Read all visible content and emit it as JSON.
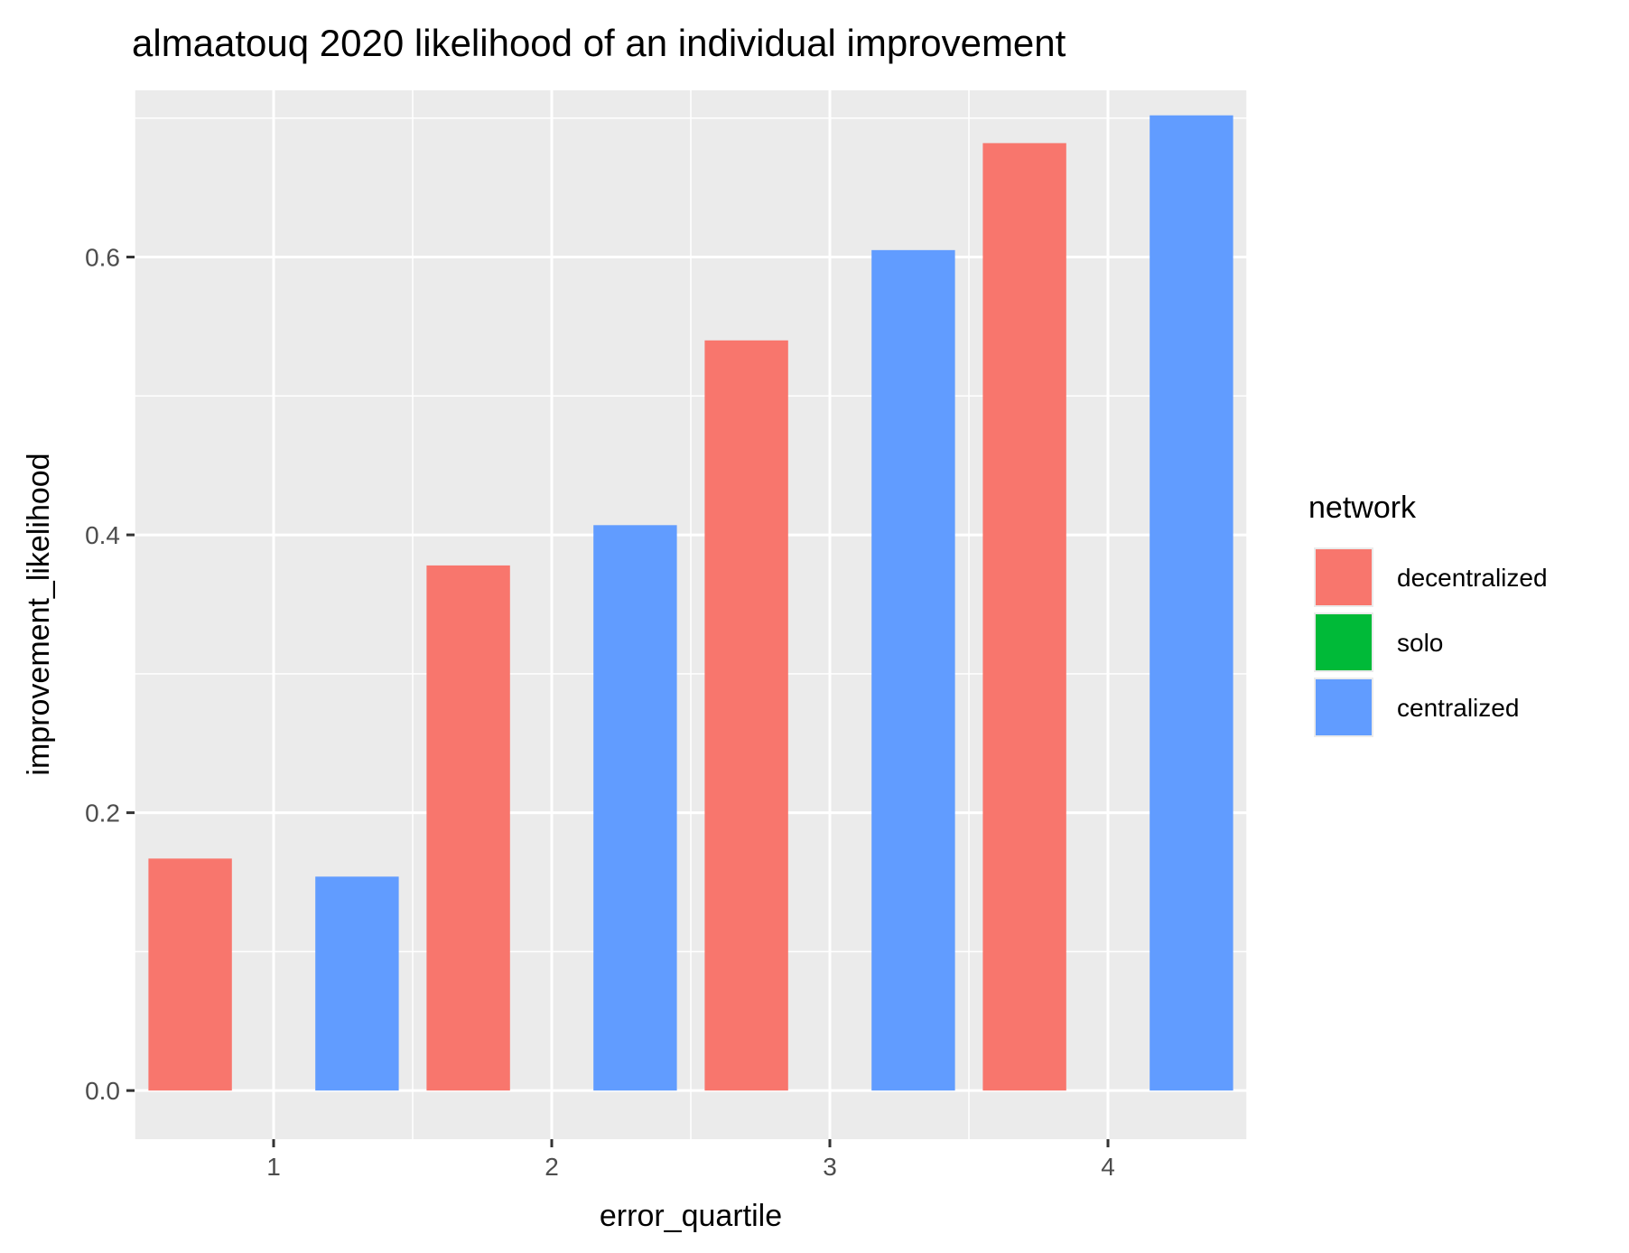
{
  "chart_data": {
    "type": "bar",
    "title": "almaatouq 2020 likelihood of an individual improvement",
    "xlabel": "error_quartile",
    "ylabel": "improvement_likelihood",
    "x_ticks": [
      "1",
      "2",
      "3",
      "4"
    ],
    "y_ticks": [
      "0.0",
      "0.2",
      "0.4",
      "0.6"
    ],
    "xlim": [
      0.5,
      4.5
    ],
    "ylim": [
      -0.035,
      0.72
    ],
    "grid": true,
    "legend": {
      "title": "network",
      "placement": "right",
      "entries": [
        {
          "label": "decentralized",
          "color": "#F8766D"
        },
        {
          "label": "solo",
          "color": "#00BA38"
        },
        {
          "label": "centralized",
          "color": "#619CFF"
        }
      ]
    },
    "bars": [
      {
        "series": "decentralized",
        "x": 0.7,
        "y": 0.167
      },
      {
        "series": "centralized",
        "x": 1.3,
        "y": 0.154
      },
      {
        "series": "decentralized",
        "x": 1.7,
        "y": 0.378
      },
      {
        "series": "centralized",
        "x": 2.3,
        "y": 0.407
      },
      {
        "series": "decentralized",
        "x": 2.7,
        "y": 0.54
      },
      {
        "series": "centralized",
        "x": 3.3,
        "y": 0.605
      },
      {
        "series": "decentralized",
        "x": 3.7,
        "y": 0.682
      },
      {
        "series": "centralized",
        "x": 4.3,
        "y": 0.702
      }
    ],
    "colors": {
      "panel_background": "#EBEBEB",
      "grid": "#FFFFFF",
      "decentralized": "#F8766D",
      "solo": "#00BA38",
      "centralized": "#619CFF"
    }
  }
}
